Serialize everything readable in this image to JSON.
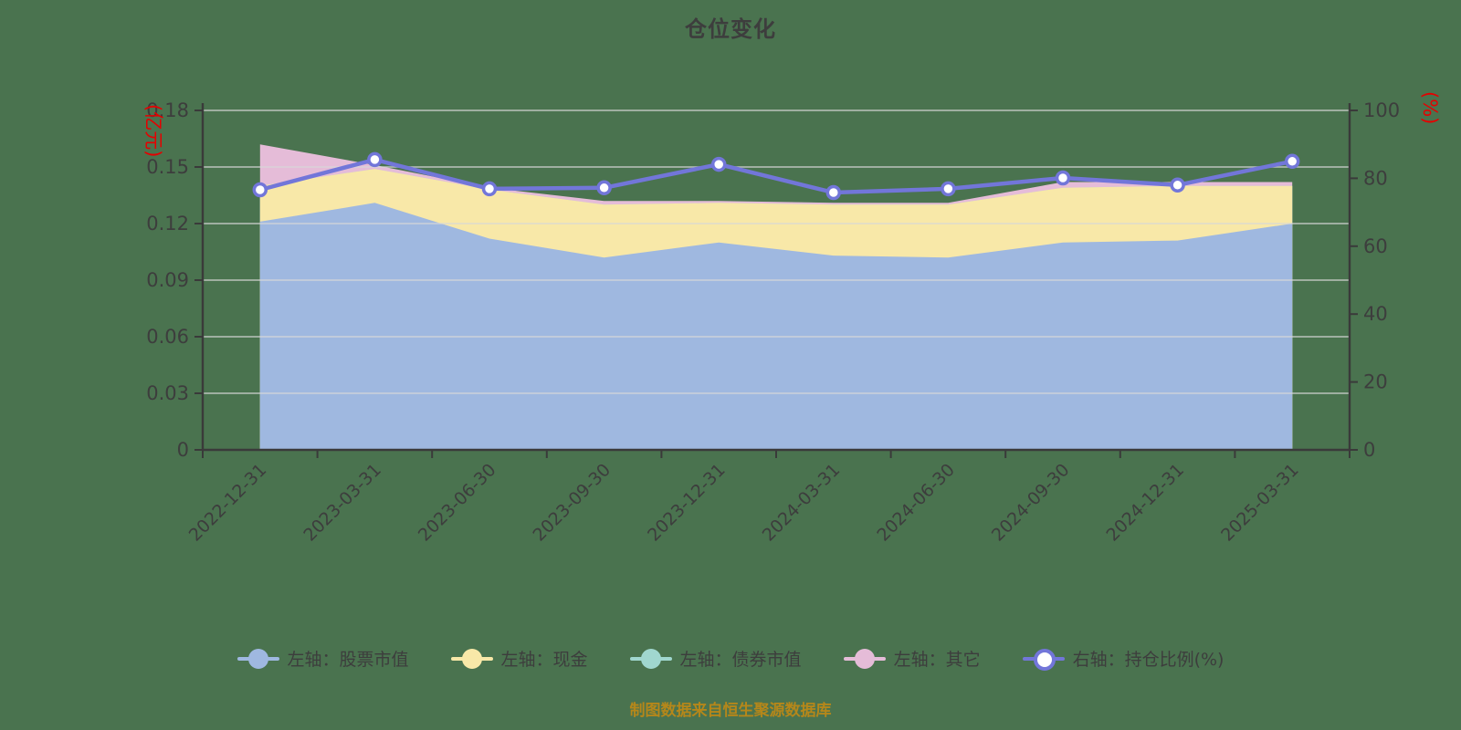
{
  "title": "仓位变化",
  "footer": "制图数据来自恒生聚源数据库",
  "colors": {
    "background": "#4a734f",
    "text": "#3d3d3d",
    "axis": "#3a3a3a",
    "grid": "#d8d8d8",
    "unit_label": "#e60000",
    "footer": "#b5871a",
    "stocks": "#9fb8e0",
    "cash": "#f8e8a8",
    "bonds": "#a0d7cf",
    "other": "#e5bcd8",
    "ratio_line": "#7276d9",
    "marker_fill": "#ffffff"
  },
  "left_axis": {
    "unit": "(亿元)",
    "ticks": [
      "0",
      "0.03",
      "0.06",
      "0.09",
      "0.12",
      "0.15",
      "0.18"
    ],
    "min": 0,
    "max": 0.18
  },
  "right_axis": {
    "unit": "(%)",
    "ticks": [
      "0",
      "20",
      "40",
      "60",
      "80",
      "100"
    ],
    "min": 0,
    "max": 100
  },
  "legend": [
    {
      "label": "左轴：股票市值",
      "series": "stocks",
      "kind": "area"
    },
    {
      "label": "左轴：现金",
      "series": "cash",
      "kind": "area"
    },
    {
      "label": "左轴：债券市值",
      "series": "bonds",
      "kind": "area"
    },
    {
      "label": "左轴：其它",
      "series": "other",
      "kind": "area"
    },
    {
      "label": "右轴：持仓比例(%)",
      "series": "ratio_line",
      "kind": "line"
    }
  ],
  "chart_data": {
    "type": "area",
    "title": "仓位变化",
    "categories": [
      "2022-12-31",
      "2023-03-31",
      "2023-06-30",
      "2023-09-30",
      "2023-12-31",
      "2024-03-31",
      "2024-06-30",
      "2024-09-30",
      "2024-12-31",
      "2025-03-31"
    ],
    "series": [
      {
        "name": "左轴：股票市值",
        "color_key": "stocks",
        "axis": "left",
        "type": "stacked-area",
        "values": [
          0.121,
          0.131,
          0.112,
          0.102,
          0.11,
          0.103,
          0.102,
          0.11,
          0.111,
          0.12
        ]
      },
      {
        "name": "左轴：现金",
        "color_key": "cash",
        "axis": "left",
        "type": "stacked-area",
        "values": [
          0.019,
          0.018,
          0.026,
          0.028,
          0.021,
          0.027,
          0.028,
          0.029,
          0.029,
          0.02
        ]
      },
      {
        "name": "左轴：债券市值",
        "color_key": "bonds",
        "axis": "left",
        "type": "stacked-area",
        "values": [
          0,
          0,
          0,
          0,
          0,
          0,
          0,
          0,
          0,
          0
        ]
      },
      {
        "name": "左轴：其它",
        "color_key": "other",
        "axis": "left",
        "type": "stacked-area",
        "values": [
          0.022,
          0.002,
          0.001,
          0.002,
          0.001,
          0.001,
          0.001,
          0.003,
          0.002,
          0.002
        ]
      },
      {
        "name": "右轴：持仓比例(%)",
        "color_key": "ratio_line",
        "axis": "right",
        "type": "line",
        "values": [
          76.6,
          85.5,
          76.9,
          77.2,
          84.1,
          75.8,
          76.9,
          80.1,
          78.0,
          85.0
        ]
      }
    ],
    "left_ylim": [
      0,
      0.18
    ],
    "right_ylim": [
      0,
      100
    ],
    "grid": true,
    "legend_position": "bottom",
    "x_label_rotation": 45
  }
}
